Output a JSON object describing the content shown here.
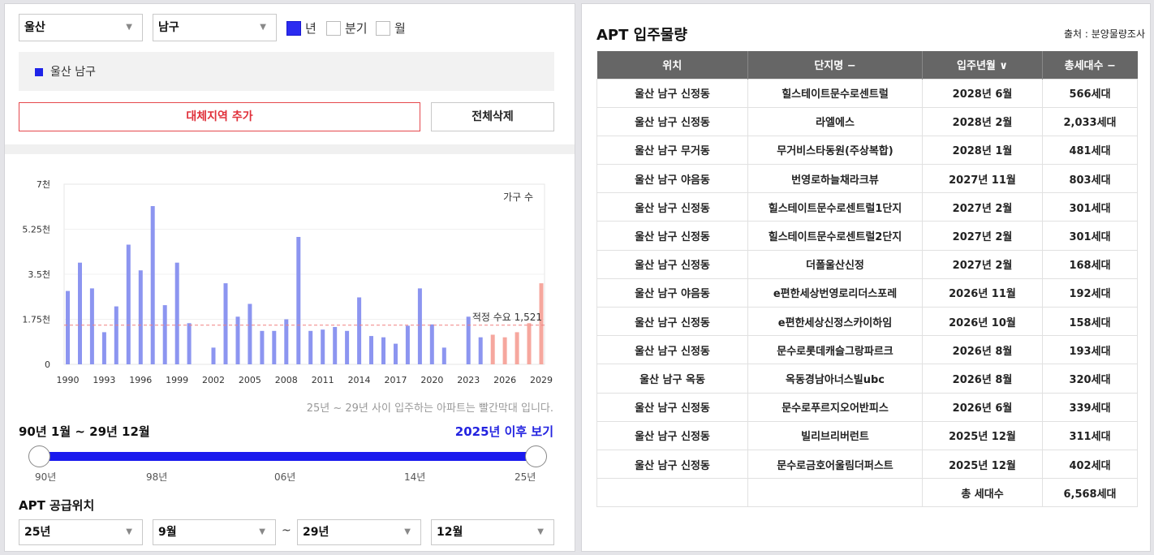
{
  "filters": {
    "region": "울산",
    "district": "남구",
    "periods": [
      {
        "label": "년",
        "checked": true
      },
      {
        "label": "분기",
        "checked": false
      },
      {
        "label": "월",
        "checked": false
      }
    ]
  },
  "selected_region": "울산 남구",
  "buttons": {
    "add_region": "대체지역 추가",
    "clear_all": "전체삭제"
  },
  "chart_note": "25년 ~ 29년 사이 입주하는 아파트는 빨간막대 입니다.",
  "range": {
    "title": "90년 1월 ~ 29년 12월",
    "link": "2025년 이후 보기",
    "ticks": [
      "90년",
      "98년",
      "06년",
      "14년",
      "25년"
    ]
  },
  "supply": {
    "title": "APT 공급위치",
    "from_year": "25년",
    "from_month": "9월",
    "to_year": "29년",
    "to_month": "12월",
    "tilde": "~"
  },
  "colors": {
    "past_bar": "#8c95f0",
    "future_bar": "#f6a79e",
    "reference_line": "#f08080",
    "accent": "#2323e0"
  },
  "chart_data": {
    "type": "bar",
    "title": "",
    "ylabel": "",
    "series_label": "가구 수",
    "x": [
      1990,
      1991,
      1992,
      1993,
      1994,
      1995,
      1996,
      1997,
      1998,
      1999,
      2000,
      2001,
      2002,
      2003,
      2004,
      2005,
      2006,
      2007,
      2008,
      2009,
      2010,
      2011,
      2012,
      2013,
      2014,
      2015,
      2016,
      2017,
      2018,
      2019,
      2020,
      2021,
      2022,
      2023,
      2024,
      2025,
      2026,
      2027,
      2028,
      2029
    ],
    "values": [
      2850,
      3950,
      2950,
      1250,
      2250,
      4650,
      3650,
      6150,
      2300,
      3950,
      1600,
      0,
      650,
      3150,
      1850,
      2350,
      1300,
      1300,
      1750,
      4950,
      1300,
      1350,
      1450,
      1300,
      2600,
      1100,
      1050,
      800,
      1500,
      2950,
      1550,
      650,
      0,
      1850,
      1050,
      1150,
      1050,
      1250,
      1600,
      3150
    ],
    "future_from": 2025,
    "xticks": [
      1990,
      1993,
      1996,
      1999,
      2002,
      2005,
      2008,
      2011,
      2014,
      2017,
      2020,
      2023,
      2026,
      2029
    ],
    "yticks": [
      "0",
      "1.75천",
      "3.5천",
      "5.25천",
      "7천"
    ],
    "ylim": [
      0,
      7000
    ],
    "reference": {
      "label": "적정 수요 1,521",
      "value": 1521
    }
  },
  "apt": {
    "title": "APT 입주물량",
    "source": "출처 : 분양물량조사",
    "headers": [
      "위치",
      "단지명 −",
      "입주년월 ∨",
      "총세대수 −"
    ],
    "rows": [
      [
        "울산 남구 신정동",
        "힐스테이트문수로센트럴",
        "2028년 6월",
        "566세대"
      ],
      [
        "울산 남구 신정동",
        "라엘에스",
        "2028년 2월",
        "2,033세대"
      ],
      [
        "울산 남구 무거동",
        "무거비스타동원(주상복합)",
        "2028년 1월",
        "481세대"
      ],
      [
        "울산 남구 야음동",
        "번영로하늘채라크뷰",
        "2027년 11월",
        "803세대"
      ],
      [
        "울산 남구 신정동",
        "힐스테이트문수로센트럴1단지",
        "2027년 2월",
        "301세대"
      ],
      [
        "울산 남구 신정동",
        "힐스테이트문수로센트럴2단지",
        "2027년 2월",
        "301세대"
      ],
      [
        "울산 남구 신정동",
        "더폴울산신정",
        "2027년 2월",
        "168세대"
      ],
      [
        "울산 남구 야음동",
        "e편한세상번영로리더스포레",
        "2026년 11월",
        "192세대"
      ],
      [
        "울산 남구 신정동",
        "e편한세상신정스카이하임",
        "2026년 10월",
        "158세대"
      ],
      [
        "울산 남구 신정동",
        "문수로롯데캐슬그랑파르크",
        "2026년 8월",
        "193세대"
      ],
      [
        "울산 남구 옥동",
        "옥동경남아너스빌ubc",
        "2026년 8월",
        "320세대"
      ],
      [
        "울산 남구 신정동",
        "문수로푸르지오어반피스",
        "2026년 6월",
        "339세대"
      ],
      [
        "울산 남구 신정동",
        "빌리브리버런트",
        "2025년 12월",
        "311세대"
      ],
      [
        "울산 남구 신정동",
        "문수로금호어울림더퍼스트",
        "2025년 12월",
        "402세대"
      ]
    ],
    "total_label": "총 세대수",
    "total_value": "6,568세대"
  }
}
